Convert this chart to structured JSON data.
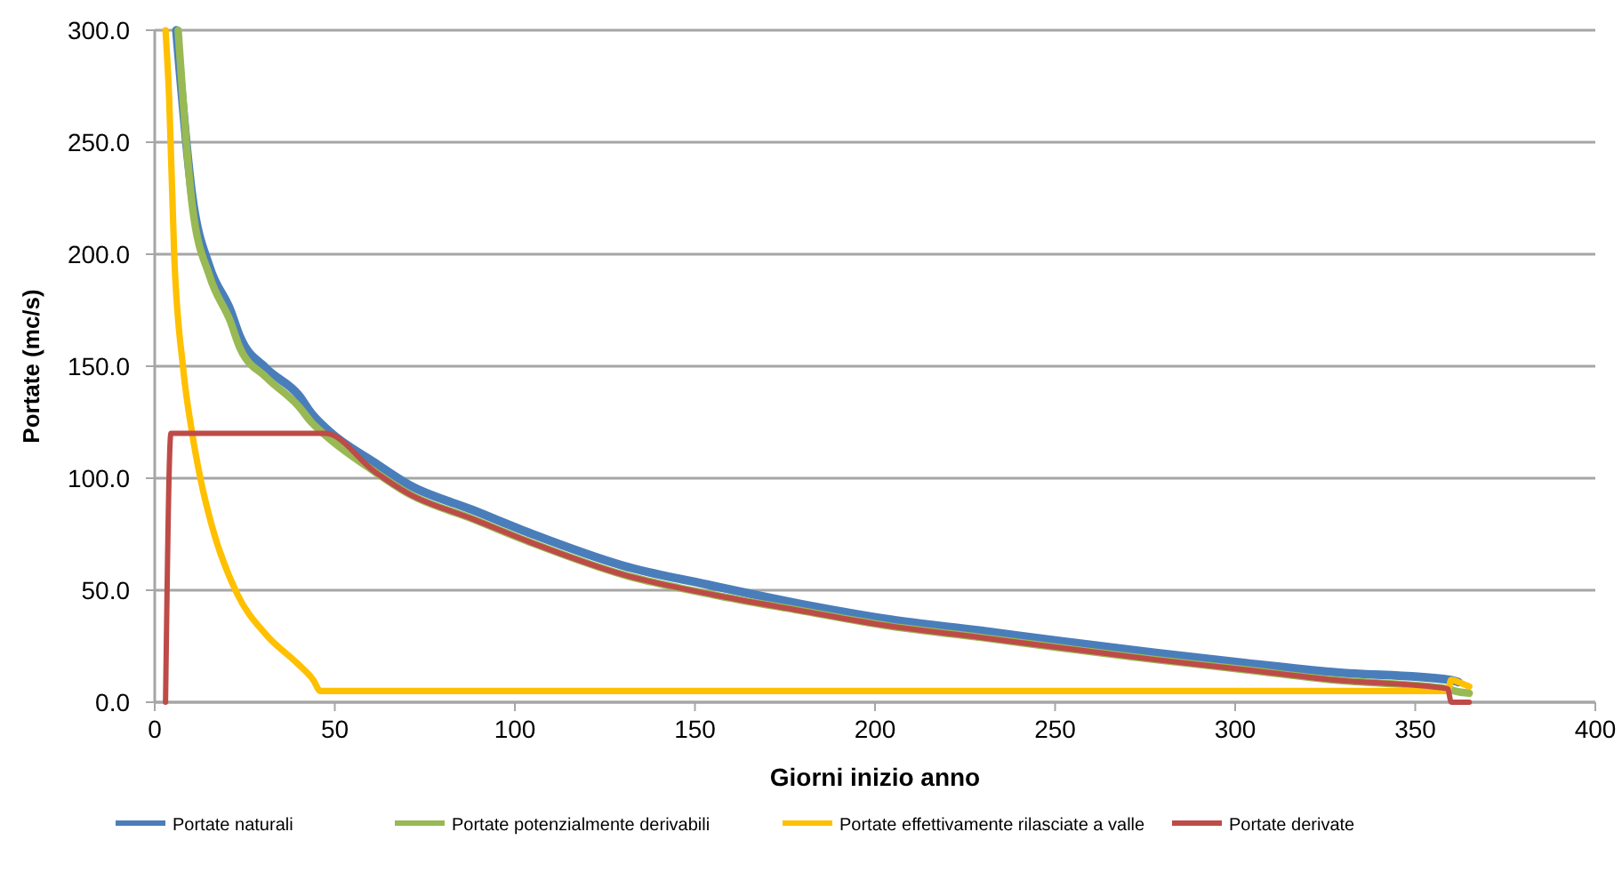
{
  "chart_data": {
    "type": "line",
    "xlabel": "Giorni inizio anno",
    "ylabel": "Portate (mc/s)",
    "xlim": [
      0,
      400
    ],
    "ylim": [
      0,
      300
    ],
    "xticks": [
      0,
      50,
      100,
      150,
      200,
      250,
      300,
      350,
      400
    ],
    "yticks": [
      {
        "value": 0,
        "label": "0.0"
      },
      {
        "value": 50,
        "label": "50.0"
      },
      {
        "value": 100,
        "label": "100.0"
      },
      {
        "value": 150,
        "label": "150.0"
      },
      {
        "value": 200,
        "label": "200.0"
      },
      {
        "value": 250,
        "label": "250.0"
      },
      {
        "value": 300,
        "label": "300.0"
      }
    ],
    "grid": "y",
    "legend": "bottom",
    "marker": "none",
    "line_style": "solid",
    "series": [
      {
        "name": "Portate naturali",
        "color": "#4a7ebb",
        "x": [
          6,
          10.4,
          15.3,
          21,
          23.7,
          31,
          40,
          43.5,
          48.4,
          61,
          70.6,
          88,
          105,
          130,
          155,
          179,
          204,
          229,
          253,
          278,
          303,
          327,
          359.5,
          362
        ],
        "values": [
          300,
          226,
          194,
          175,
          163,
          149,
          137,
          129,
          121,
          107,
          97,
          86,
          75,
          61,
          52,
          44,
          37,
          32,
          27,
          22,
          17.5,
          13.5,
          10,
          9
        ]
      },
      {
        "name": "Portate potenzialmente derivabili",
        "color": "#98b954",
        "x": [
          6.5,
          10.4,
          15.3,
          21,
          23.7,
          31,
          40,
          43.5,
          47.5,
          61,
          70.6,
          88,
          105,
          130,
          155,
          179,
          204,
          229,
          253,
          278,
          303,
          327,
          359,
          361,
          365
        ],
        "values": [
          300,
          222,
          190,
          170,
          158,
          145,
          132,
          125,
          119,
          103,
          93,
          82,
          71,
          57,
          48,
          41,
          34,
          29,
          24,
          19,
          14.5,
          10,
          6,
          5,
          4
        ]
      },
      {
        "name": "Portate effettivamente rilasciate a valle",
        "color": "#ffc000",
        "x": [
          3,
          4,
          5.4,
          7.9,
          10.4,
          12.8,
          16,
          22.7,
          31,
          39.5,
          44,
          46,
          100,
          200,
          300,
          359,
          360,
          362,
          365
        ],
        "values": [
          300,
          270,
          200,
          149,
          120,
          99,
          78,
          49,
          30,
          17.5,
          10,
          5,
          5,
          5,
          5,
          5,
          10,
          9,
          7
        ]
      },
      {
        "name": "Portate derivate",
        "color": "#be4b48",
        "x": [
          3,
          4.5,
          47.5,
          61,
          70.6,
          88,
          105,
          130,
          155,
          179,
          204,
          229,
          253,
          278,
          303,
          327,
          359,
          360,
          365
        ],
        "values": [
          0,
          120,
          120,
          103,
          93,
          82,
          71,
          57,
          48,
          41,
          34,
          29,
          24,
          19,
          14.5,
          10,
          6,
          0,
          0
        ]
      }
    ]
  }
}
